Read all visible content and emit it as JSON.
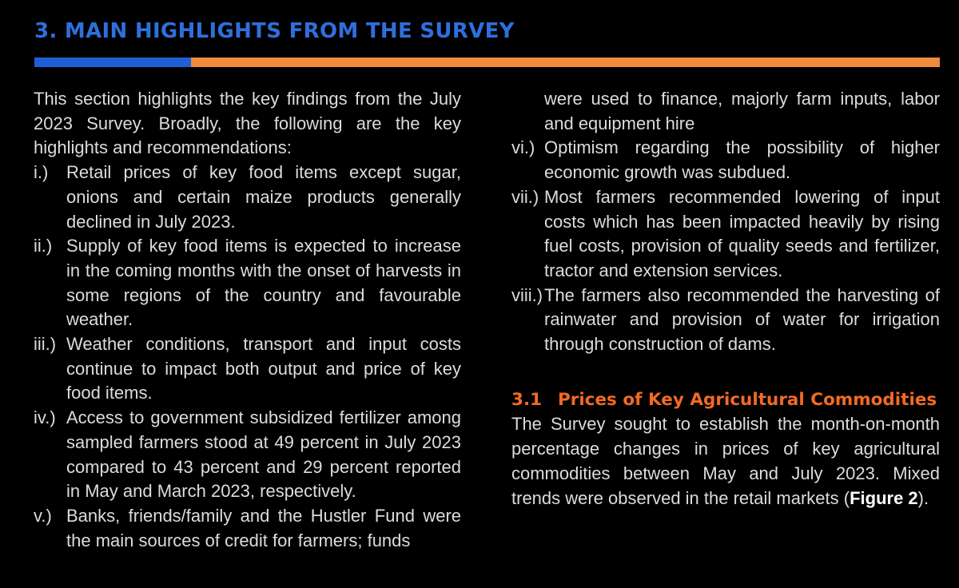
{
  "header": {
    "title": "3. MAIN HIGHLIGHTS FROM THE SURVEY",
    "rule_colors": [
      "#1f5fd6",
      "#f08a3c"
    ]
  },
  "intro": "This section highlights the key findings from the July 2023 Survey. Broadly, the following are the key highlights and recommendations:",
  "highlights": [
    {
      "num": "i.)",
      "text": "Retail prices of key food items except sugar, onions and certain maize products  generally declined in July 2023."
    },
    {
      "num": "ii.)",
      "text": "Supply of key food items is expected to increase in the coming months with the onset of harvests in some regions of the country and favourable weather."
    },
    {
      "num": "iii.)",
      "text": "Weather conditions, transport and input costs continue to impact both output and price of key food items."
    },
    {
      "num": "iv.)",
      "text": "Access to government subsidized fertilizer among sampled farmers stood at 49 percent in July 2023 compared to 43 percent and 29 percent reported in May and March 2023, respectively."
    },
    {
      "num": "v.)",
      "text": "Banks, friends/family and the Hustler Fund were the main sources of credit for farmers; funds",
      "continuation": "were used to finance, majorly farm inputs, labor and equipment hire"
    },
    {
      "num": "vi.)",
      "text": "Optimism regarding the possibility of higher economic growth was subdued."
    },
    {
      "num": "vii.)",
      "text": "Most farmers recommended lowering of input costs which has been impacted heavily by rising fuel costs, provision of quality seeds and fertilizer, tractor and extension services."
    },
    {
      "num": "viii.)",
      "text": "The farmers also recommended the harvesting of rainwater and provision of water for irrigation through construction of dams."
    }
  ],
  "section_3_1": {
    "number": "3.1",
    "title": "Prices of Key Agricultural Commodities",
    "text": "The Survey sought to establish the month-on-month percentage changes in prices of key agricultural commodities between May and July 2023. Mixed trends were observed in the retail markets (",
    "figure_ref": "Figure 2",
    "text_end": ").",
    "heading_color": "#f26a24"
  }
}
